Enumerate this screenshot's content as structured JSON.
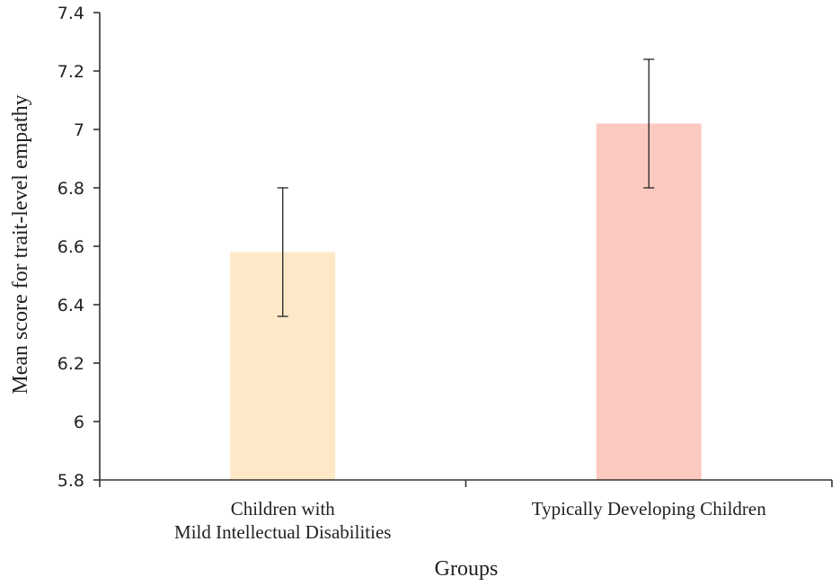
{
  "chart_data": {
    "type": "bar",
    "title": "",
    "xlabel": "Groups",
    "ylabel": "Mean score for trait-level empathy",
    "categories": [
      [
        "Children with",
        "Mild Intellectual Disabilities"
      ],
      [
        "Typically Developing Children"
      ]
    ],
    "category_names": [
      "Children with Mild Intellectual Disabilities",
      "Typically Developing Children"
    ],
    "values": [
      6.58,
      7.02
    ],
    "error_low": [
      6.36,
      6.8
    ],
    "error_high": [
      6.8,
      7.24
    ],
    "colors": [
      "#fde9c8",
      "#fcc9c0"
    ],
    "ylim": [
      5.8,
      7.4
    ],
    "yticks": [
      5.8,
      6,
      6.2,
      6.4,
      6.6,
      6.8,
      7,
      7.2,
      7.4
    ],
    "ytick_labels": [
      "5.8",
      "6",
      "6.2",
      "6.4",
      "6.6",
      "6.8",
      "7",
      "7.2",
      "7.4"
    ],
    "grid": false,
    "legend": "none"
  }
}
